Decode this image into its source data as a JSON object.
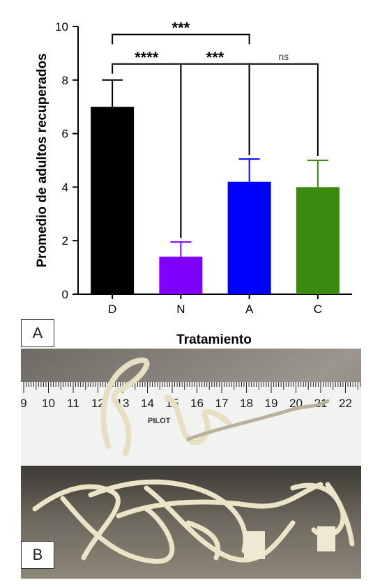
{
  "chart_data": {
    "type": "bar",
    "categories": [
      "D",
      "N",
      "A",
      "C"
    ],
    "values": [
      7.0,
      1.4,
      4.2,
      4.0
    ],
    "error_upper": [
      8.0,
      1.95,
      5.05,
      5.0
    ],
    "colors": [
      "#000000",
      "#8000ff",
      "#0000ff",
      "#3a8a0f"
    ],
    "xlabel": "Tratamiento",
    "ylabel": "Promedio de adultos recuperados",
    "ylim": [
      0,
      10
    ],
    "yticks": [
      0,
      2,
      4,
      6,
      8,
      10
    ],
    "grid": false,
    "significance": [
      {
        "from": "D",
        "to": "A",
        "label": "***",
        "y": 9.7
      },
      {
        "from": "D",
        "to": "N",
        "label": "****",
        "y": 8.6
      },
      {
        "from": "N",
        "to": "A",
        "label": "***",
        "y": 8.6
      },
      {
        "from": "A",
        "to": "C",
        "label": "ns",
        "y": 8.6
      }
    ]
  },
  "panels": {
    "a_label": "A",
    "b_label": "B"
  },
  "ruler": {
    "numbers": [
      "9",
      "10",
      "11",
      "12",
      "13",
      "14",
      "15",
      "16",
      "17",
      "18",
      "19",
      "20",
      "21",
      "22"
    ],
    "brand": "PILOT"
  }
}
